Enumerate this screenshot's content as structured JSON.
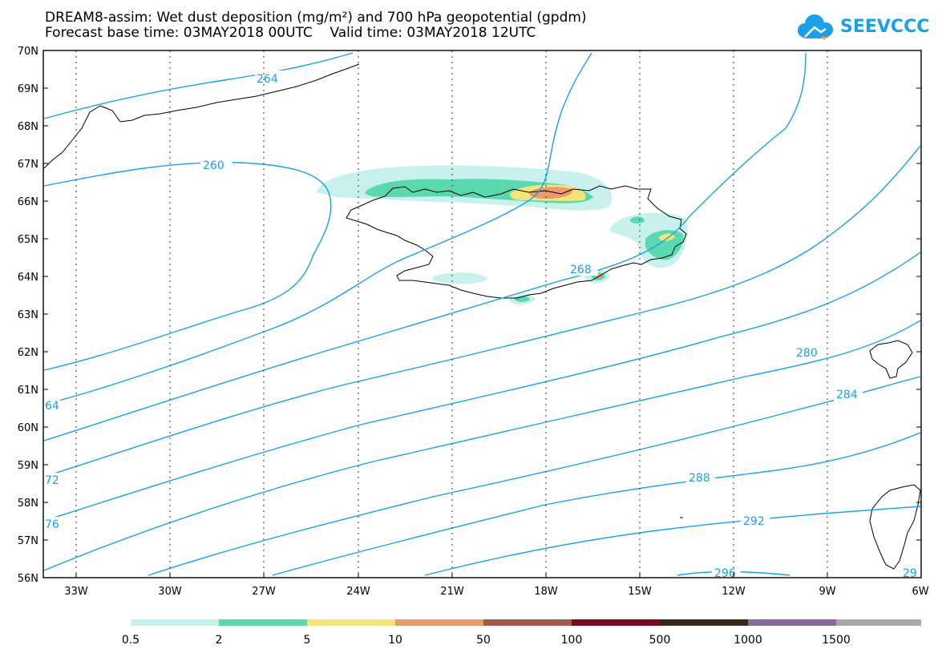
{
  "header": {
    "title_line1": "DREAM8-assim: Wet dust deposition (mg/m²) and 700 hPa geopotential (gpdm)",
    "base_time": "Forecast base time: 03MAY2018 00UTC",
    "valid_time": "Valid time: 03MAY2018 12UTC",
    "logo_text": "SEEVCCC"
  },
  "map": {
    "lat_labels": [
      "70N",
      "69N",
      "68N",
      "67N",
      "66N",
      "65N",
      "64N",
      "63N",
      "62N",
      "61N",
      "60N",
      "59N",
      "58N",
      "57N",
      "56N"
    ],
    "lon_labels": [
      "33W",
      "30W",
      "27W",
      "24W",
      "21W",
      "18W",
      "15W",
      "12W",
      "9W",
      "6W"
    ],
    "contour_labels": [
      {
        "text": "264",
        "id": "264-north"
      },
      {
        "text": "260",
        "id": "260"
      },
      {
        "text": "268",
        "id": "268"
      },
      {
        "text": "280",
        "id": "280"
      },
      {
        "text": "284",
        "id": "284"
      },
      {
        "text": "288",
        "id": "288"
      },
      {
        "text": "292",
        "id": "292"
      },
      {
        "text": "296",
        "id": "296"
      },
      {
        "text": "64",
        "id": "264-west"
      },
      {
        "text": "72",
        "id": "272-west"
      },
      {
        "text": "76",
        "id": "276-west"
      },
      {
        "text": "29",
        "id": "29-east"
      }
    ],
    "colors": {
      "contour": "#1aa0e8"
    }
  },
  "legend": {
    "labels": [
      "0.5",
      "2",
      "5",
      "10",
      "50",
      "100",
      "500",
      "1000",
      "1500"
    ],
    "colors": [
      "#c8f0ec",
      "#5ad8ae",
      "#f4e47a",
      "#ea9a6c",
      "#a05a4e",
      "#7a0a22",
      "#3a2818",
      "#8a6a9a",
      "#a8a8a8"
    ]
  }
}
